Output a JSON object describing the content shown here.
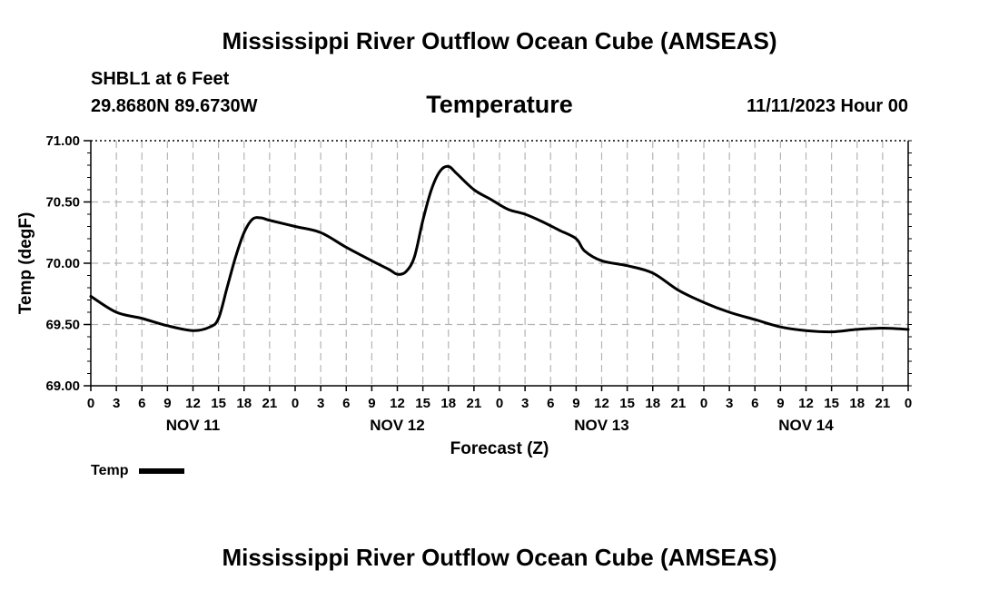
{
  "page": {
    "title": "Mississippi River Outflow Ocean Cube (AMSEAS)",
    "footer_title": "Mississippi River Outflow Ocean Cube (AMSEAS)",
    "station": "SHBL1 at 6 Feet",
    "coordinates": "29.8680N  89.6730W",
    "datetime": "11/11/2023 Hour 00"
  },
  "colors": {
    "line": "#000000",
    "grid": "#b4b4b4",
    "axis": "#000000"
  },
  "chart_data": {
    "type": "line",
    "title": "Temperature",
    "xlabel": "Forecast (Z)",
    "ylabel": "Temp (degF)",
    "grid": true,
    "xlim": [
      0,
      96
    ],
    "ylim": [
      69.0,
      71.0
    ],
    "yticks": [
      "69.00",
      "69.50",
      "70.00",
      "70.50",
      "71.00"
    ],
    "yticks_values": [
      69.0,
      69.5,
      70.0,
      70.5,
      71.0
    ],
    "xtick_labels": [
      "0",
      "3",
      "6",
      "9",
      "12",
      "15",
      "18",
      "21",
      "0",
      "3",
      "6",
      "9",
      "12",
      "15",
      "18",
      "21",
      "0",
      "3",
      "6",
      "9",
      "12",
      "15",
      "18",
      "21",
      "0",
      "3",
      "6",
      "9",
      "12",
      "15",
      "18",
      "21",
      "0"
    ],
    "day_labels": [
      {
        "label": "NOV 11",
        "hour": 12
      },
      {
        "label": "NOV 12",
        "hour": 36
      },
      {
        "label": "NOV 13",
        "hour": 60
      },
      {
        "label": "NOV 14",
        "hour": 84
      }
    ],
    "legend": [
      {
        "name": "Temp",
        "color": "#000000"
      }
    ],
    "series": [
      {
        "name": "Temp",
        "x": [
          0,
          3,
          6,
          9,
          12,
          14,
          15,
          16,
          17,
          18,
          19,
          20,
          21,
          24,
          27,
          30,
          33,
          35,
          36,
          37,
          38,
          39,
          40,
          41,
          42,
          43,
          45,
          47,
          49,
          51,
          53,
          55,
          57,
          58,
          60,
          63,
          66,
          69,
          72,
          75,
          78,
          81,
          84,
          87,
          90,
          93,
          96
        ],
        "y": [
          69.73,
          69.6,
          69.55,
          69.49,
          69.45,
          69.48,
          69.55,
          69.8,
          70.05,
          70.25,
          70.36,
          70.37,
          70.35,
          70.3,
          70.25,
          70.13,
          70.02,
          69.95,
          69.91,
          69.93,
          70.05,
          70.35,
          70.6,
          70.75,
          70.79,
          70.73,
          70.6,
          70.52,
          70.44,
          70.4,
          70.34,
          70.27,
          70.2,
          70.1,
          70.02,
          69.98,
          69.92,
          69.78,
          69.68,
          69.6,
          69.54,
          69.48,
          69.45,
          69.44,
          69.46,
          69.47,
          69.46
        ]
      }
    ]
  }
}
